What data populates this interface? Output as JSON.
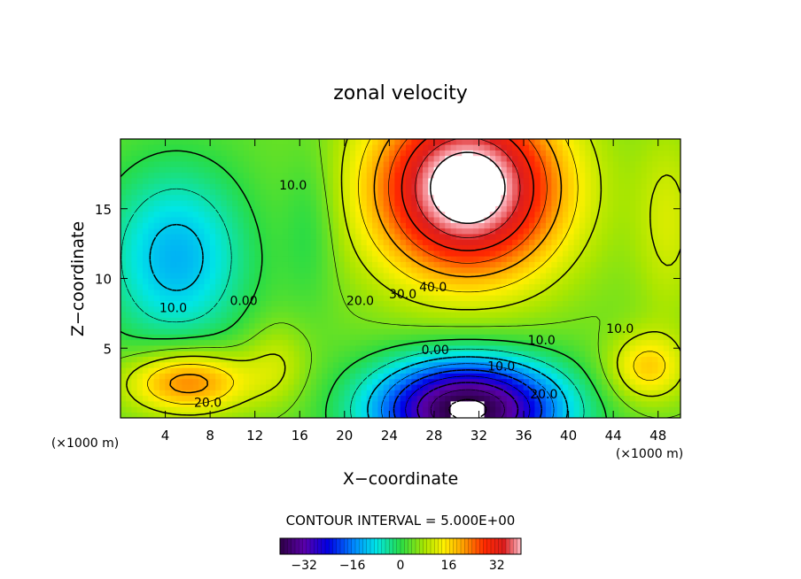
{
  "chart_data": {
    "type": "heatmap",
    "title": "zonal velocity",
    "xlabel": "X−coordinate",
    "ylabel": "Z−coordinate",
    "x_unit_left": "(×1000 m)",
    "x_unit_right": "(×1000 m)",
    "xlim": [
      0,
      50
    ],
    "ylim": [
      0,
      20
    ],
    "x_ticks": [
      4,
      8,
      12,
      16,
      20,
      24,
      28,
      32,
      36,
      40,
      44,
      48
    ],
    "x_tick_labels": [
      "4",
      "8",
      "12",
      "16",
      "20",
      "24",
      "28",
      "32",
      "36",
      "40",
      "44",
      "48"
    ],
    "y_ticks": [
      5,
      10,
      15
    ],
    "y_tick_labels": [
      "5",
      "10",
      "15"
    ],
    "contour_interval_text": "CONTOUR INTERVAL = 5.000E+00",
    "contour_interval": 5,
    "colorbar": {
      "range": [
        -40,
        40
      ],
      "ticks": [
        -32,
        -16,
        0,
        16,
        32
      ],
      "tick_labels": [
        "−32",
        "−16",
        "0",
        "16",
        "32"
      ]
    },
    "contour_labels": [
      {
        "text": "10.0",
        "x": 15.4,
        "y": 16.7
      },
      {
        "text": "0.00",
        "x": 11.0,
        "y": 8.4
      },
      {
        "text": "10.0",
        "x": 4.7,
        "y": 7.9
      },
      {
        "text": "20.0",
        "x": 21.4,
        "y": 8.4
      },
      {
        "text": "30.0",
        "x": 25.2,
        "y": 8.9
      },
      {
        "text": "40.0",
        "x": 27.9,
        "y": 9.4
      },
      {
        "text": "10.0",
        "x": 37.6,
        "y": 5.6
      },
      {
        "text": "10.0",
        "x": 44.6,
        "y": 6.4
      },
      {
        "text": "0.00",
        "x": 28.1,
        "y": 4.9
      },
      {
        "text": "10.0",
        "x": 34.0,
        "y": 3.7
      },
      {
        "text": "20.0",
        "x": 37.8,
        "y": 1.7
      },
      {
        "text": "20.0",
        "x": 7.8,
        "y": 1.1
      }
    ],
    "features": [
      {
        "name": "positive jet core",
        "x": 31,
        "y": 16,
        "peak": 46
      },
      {
        "name": "negative core",
        "x": 31,
        "y": 0.6,
        "peak": -44
      },
      {
        "name": "upper-left minimum",
        "x": 5,
        "y": 10,
        "peak": -12
      },
      {
        "name": "lower-left maximum",
        "x": 6,
        "y": 2.6,
        "peak": 24
      },
      {
        "name": "lower-right maximum",
        "x": 47,
        "y": 3.6,
        "peak": 17
      }
    ]
  }
}
